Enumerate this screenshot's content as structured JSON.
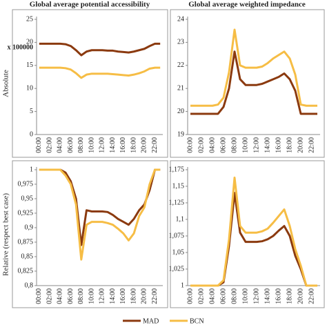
{
  "column_titles": [
    "Global average potential accessibility",
    "Global average weighted impedance"
  ],
  "row_labels": [
    "Absolute",
    "Relative (respect best case)"
  ],
  "chart_data": [
    {
      "type": "line",
      "annotation": "x 100000",
      "categories": [
        "00:00",
        null,
        "02:00",
        null,
        "04:00",
        null,
        "06:00",
        null,
        "08:00",
        null,
        "10:00",
        null,
        "12:00",
        null,
        "14:00",
        null,
        "16:00",
        null,
        "18:00",
        null,
        "20:00",
        null,
        "22:00",
        null
      ],
      "series": [
        {
          "name": "MAD",
          "color": "#8b3a0f",
          "values": [
            19.7,
            19.7,
            19.7,
            19.7,
            19.7,
            19.6,
            19.2,
            18.3,
            17.2,
            18.0,
            18.3,
            18.3,
            18.3,
            18.2,
            18.2,
            18.0,
            17.9,
            17.8,
            18.0,
            18.3,
            18.6,
            19.2,
            19.7,
            19.7
          ]
        },
        {
          "name": "BCN",
          "color": "#f6bd45",
          "values": [
            14.5,
            14.5,
            14.5,
            14.5,
            14.5,
            14.4,
            14.1,
            13.3,
            12.3,
            13.0,
            13.2,
            13.2,
            13.2,
            13.2,
            13.1,
            13.0,
            12.9,
            12.8,
            13.0,
            13.3,
            13.7,
            14.3,
            14.5,
            14.5
          ]
        }
      ],
      "ylim": [
        0,
        25
      ],
      "yticks": [
        0,
        5,
        10,
        15,
        20,
        25
      ]
    },
    {
      "type": "line",
      "categories": [
        "00:00",
        null,
        "02:00",
        null,
        "04:00",
        null,
        "06:00",
        null,
        "08:00",
        null,
        "10:00",
        null,
        "12:00",
        null,
        "14:00",
        null,
        "16:00",
        null,
        "18:00",
        null,
        "20:00",
        null,
        "22:00",
        null
      ],
      "series": [
        {
          "name": "MAD",
          "color": "#8b3a0f",
          "values": [
            19.9,
            19.9,
            19.9,
            19.9,
            19.9,
            19.9,
            20.2,
            21.0,
            22.6,
            21.4,
            21.15,
            21.15,
            21.15,
            21.2,
            21.3,
            21.4,
            21.5,
            21.65,
            21.4,
            20.9,
            19.9,
            19.9,
            19.9,
            19.9
          ]
        },
        {
          "name": "BCN",
          "color": "#f6bd45",
          "values": [
            20.25,
            20.25,
            20.25,
            20.25,
            20.25,
            20.3,
            20.6,
            21.7,
            23.55,
            22.0,
            21.9,
            21.9,
            21.9,
            21.95,
            22.1,
            22.3,
            22.45,
            22.6,
            22.3,
            21.6,
            20.3,
            20.25,
            20.25,
            20.25
          ]
        }
      ],
      "ylim": [
        19,
        24
      ],
      "yticks": [
        19,
        20,
        21,
        22,
        23,
        24
      ]
    },
    {
      "type": "line",
      "categories": [
        "00:00",
        null,
        "02:00",
        null,
        "04:00",
        null,
        "06:00",
        null,
        "08:00",
        null,
        "10:00",
        null,
        "12:00",
        null,
        "14:00",
        null,
        "16:00",
        null,
        "18:00",
        null,
        "20:00",
        null,
        "22:00",
        null
      ],
      "series": [
        {
          "name": "MAD",
          "color": "#8b3a0f",
          "values": [
            1,
            1,
            1,
            1,
            1,
            0.995,
            0.98,
            0.95,
            0.87,
            0.93,
            0.928,
            0.928,
            0.928,
            0.927,
            0.922,
            0.915,
            0.91,
            0.905,
            0.915,
            0.93,
            0.94,
            0.965,
            1,
            1
          ]
        },
        {
          "name": "BCN",
          "color": "#f6bd45",
          "values": [
            1,
            1,
            1,
            1,
            1,
            0.99,
            0.975,
            0.94,
            0.845,
            0.905,
            0.91,
            0.91,
            0.91,
            0.908,
            0.905,
            0.898,
            0.89,
            0.878,
            0.89,
            0.92,
            0.935,
            0.975,
            1,
            1
          ]
        }
      ],
      "ylim": [
        0.8,
        1
      ],
      "yticks": [
        {
          "value": 0.8,
          "label": "0,8"
        },
        {
          "value": 0.825,
          "label": "0,825"
        },
        {
          "value": 0.85,
          "label": "0,85"
        },
        {
          "value": 0.875,
          "label": "0,875"
        },
        {
          "value": 0.9,
          "label": "0,9"
        },
        {
          "value": 0.925,
          "label": "0,925"
        },
        {
          "value": 0.95,
          "label": "0,95"
        },
        {
          "value": 0.975,
          "label": "0,975"
        },
        1
      ]
    },
    {
      "type": "line",
      "categories": [
        "00:00",
        null,
        "02:00",
        null,
        "04:00",
        null,
        "06:00",
        null,
        "08:00",
        null,
        "10:00",
        null,
        "12:00",
        null,
        "14:00",
        null,
        "16:00",
        null,
        "18:00",
        null,
        "20:00",
        null,
        "22:00",
        null
      ],
      "series": [
        {
          "name": "MAD",
          "color": "#8b3a0f",
          "values": [
            1,
            1,
            1,
            1,
            1,
            1,
            1.005,
            1.06,
            1.14,
            1.08,
            1.066,
            1.066,
            1.066,
            1.067,
            1.07,
            1.075,
            1.083,
            1.09,
            1.075,
            1.045,
            1.025,
            1,
            1,
            1
          ]
        },
        {
          "name": "BCN",
          "color": "#f6bd45",
          "values": [
            1,
            1,
            1,
            1,
            1,
            1,
            1.008,
            1.07,
            1.163,
            1.09,
            1.08,
            1.08,
            1.08,
            1.082,
            1.086,
            1.095,
            1.105,
            1.115,
            1.09,
            1.055,
            1.03,
            1,
            1,
            1
          ]
        }
      ],
      "ylim": [
        1,
        1.175
      ],
      "yticks": [
        1,
        {
          "value": 1.025,
          "label": "1,025"
        },
        {
          "value": 1.05,
          "label": "1,05"
        },
        {
          "value": 1.075,
          "label": "1,075"
        },
        {
          "value": 1.1,
          "label": "1,1"
        },
        {
          "value": 1.125,
          "label": "1,125"
        },
        {
          "value": 1.15,
          "label": "1,15"
        },
        {
          "value": 1.175,
          "label": "1,175"
        }
      ]
    }
  ]
}
